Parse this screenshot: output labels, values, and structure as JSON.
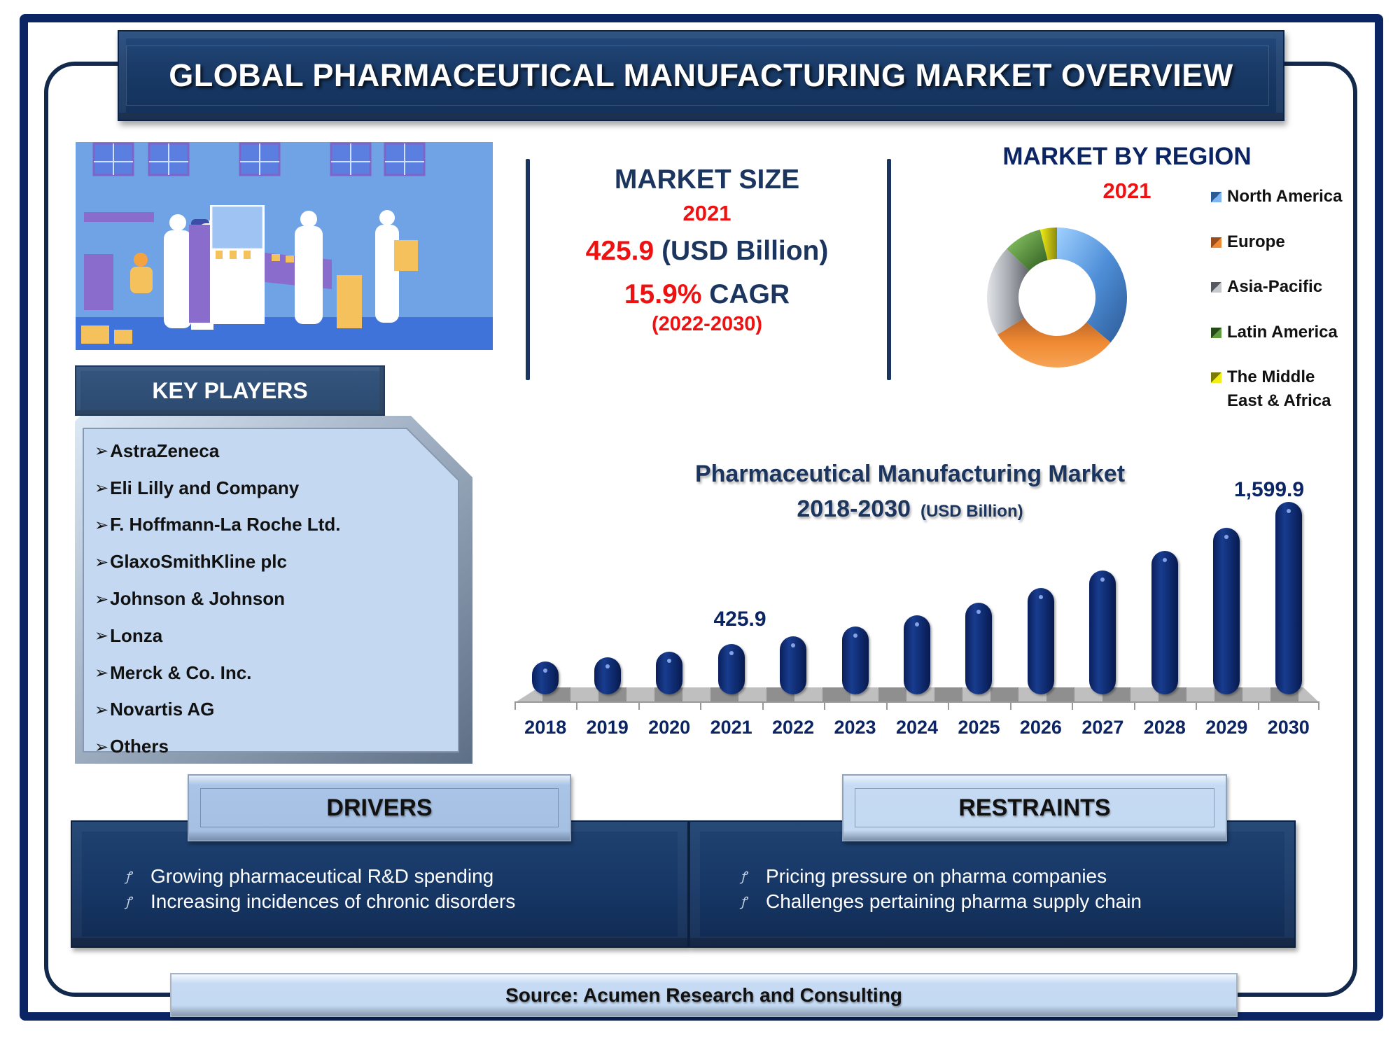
{
  "header": {
    "title": "GLOBAL PHARMACEUTICAL MANUFACTURING MARKET OVERVIEW"
  },
  "market_size": {
    "title": "MARKET SIZE",
    "year": "2021",
    "value": "425.9",
    "unit": "(USD Billion)",
    "cagr_value": "15.9%",
    "cagr_label": "CAGR",
    "period": "(2022-2030)"
  },
  "region": {
    "title": "MARKET BY REGION",
    "year": "2021",
    "legend": [
      {
        "label": "North America",
        "color": "#4f8fd8"
      },
      {
        "label": "Europe",
        "color": "#f08a32"
      },
      {
        "label": "Asia-Pacific",
        "color": "#a9adb3"
      },
      {
        "label": "Latin America",
        "color": "#4f8a34"
      },
      {
        "label": "The Middle East & Africa",
        "color": "#f2ee14"
      }
    ]
  },
  "key_players": {
    "title": "KEY PLAYERS",
    "bullet": "➢",
    "items": [
      "AstraZeneca",
      "Eli Lilly and Company",
      "F. Hoffmann-La Roche Ltd.",
      "GlaxoSmithKline plc",
      "Johnson & Johnson",
      "Lonza",
      "Merck & Co. Inc.",
      "Novartis AG",
      "Others"
    ]
  },
  "bar_chart": {
    "title_line1": "Pharmaceutical Manufacturing Market",
    "title_line2": "2018-2030",
    "unit": "(USD Billion)",
    "label_2021": "425.9",
    "label_2030": "1,599.9"
  },
  "drivers": {
    "title": "DRIVERS",
    "items": [
      "Growing pharmaceutical R&D spending",
      "Increasing incidences of chronic disorders"
    ]
  },
  "restraints": {
    "title": "RESTRAINTS",
    "items": [
      "Pricing pressure on pharma companies",
      "Challenges pertaining pharma supply chain"
    ]
  },
  "footer": {
    "source": "Source: Acumen Research and Consulting"
  },
  "colors": {
    "navy": "#1b355e",
    "frame": "#0b2463",
    "red": "#ee1111",
    "bar": "#0e2a6e"
  },
  "chart_data": [
    {
      "type": "bar",
      "title": "Pharmaceutical Manufacturing Market 2018-2030 (USD Billion)",
      "xlabel": "",
      "ylabel": "USD Billion",
      "categories": [
        "2018",
        "2019",
        "2020",
        "2021",
        "2022",
        "2023",
        "2024",
        "2025",
        "2026",
        "2027",
        "2028",
        "2029",
        "2030"
      ],
      "values": [
        280.3,
        318.6,
        366.4,
        425.9,
        493.6,
        572.1,
        663.1,
        768.5,
        890.7,
        1032.3,
        1196.5,
        1386.7,
        1599.9
      ],
      "annotations": [
        {
          "x": "2021",
          "label": "425.9"
        },
        {
          "x": "2030",
          "label": "1,599.9"
        }
      ],
      "grid": false,
      "ylim": [
        0,
        1700
      ]
    },
    {
      "type": "pie",
      "title": "MARKET BY REGION 2021",
      "style": "donut",
      "categories": [
        "North America",
        "Europe",
        "Asia-Pacific",
        "Latin America",
        "The Middle East & Africa"
      ],
      "values": [
        36,
        30,
        21,
        9,
        4
      ],
      "legend_position": "right"
    }
  ]
}
